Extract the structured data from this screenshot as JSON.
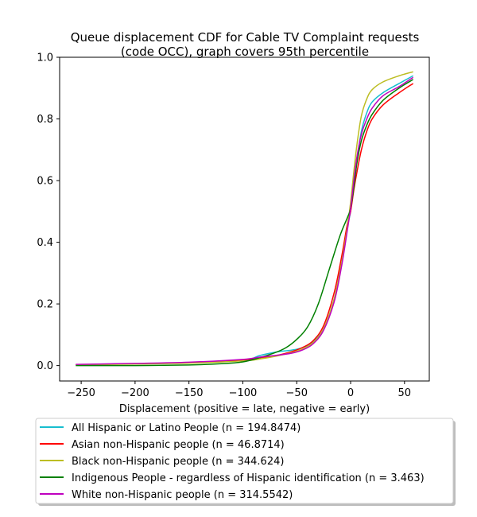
{
  "chart_data": {
    "type": "line",
    "title_line1": "Queue displacement CDF for Cable TV Complaint  requests",
    "title_line2": "(code OCC), graph covers 95th percentile",
    "xlabel": "Displacement (positive = late, negative = early)",
    "ylabel": "",
    "xlim": [
      -270,
      73
    ],
    "ylim": [
      -0.05,
      1.0
    ],
    "xticks": [
      -250,
      -200,
      -150,
      -100,
      -50,
      0,
      50
    ],
    "xtick_labels": [
      "−250",
      "−200",
      "−150",
      "−100",
      "−50",
      "0",
      "50"
    ],
    "yticks": [
      0.0,
      0.2,
      0.4,
      0.6,
      0.8,
      1.0
    ],
    "ytick_labels": [
      "0.0",
      "0.2",
      "0.4",
      "0.6",
      "0.8",
      "1.0"
    ],
    "grid": false,
    "legend_position": "below",
    "series": [
      {
        "name": "All Hispanic or Latino People (n = 194.8474)",
        "color": "#17becf",
        "points": [
          [
            -255,
            0.003
          ],
          [
            -200,
            0.006
          ],
          [
            -150,
            0.009
          ],
          [
            -100,
            0.017
          ],
          [
            -85,
            0.032
          ],
          [
            -75,
            0.04
          ],
          [
            -65,
            0.046
          ],
          [
            -55,
            0.05
          ],
          [
            -45,
            0.058
          ],
          [
            -35,
            0.077
          ],
          [
            -25,
            0.12
          ],
          [
            -15,
            0.22
          ],
          [
            -8,
            0.34
          ],
          [
            -3,
            0.45
          ],
          [
            0,
            0.5
          ],
          [
            3,
            0.59
          ],
          [
            6,
            0.67
          ],
          [
            10,
            0.76
          ],
          [
            15,
            0.82
          ],
          [
            20,
            0.855
          ],
          [
            30,
            0.885
          ],
          [
            45,
            0.915
          ],
          [
            58,
            0.94
          ]
        ]
      },
      {
        "name": "Asian non-Hispanic people (n = 46.8714)",
        "color": "#ff0000",
        "points": [
          [
            -255,
            0.003
          ],
          [
            -200,
            0.006
          ],
          [
            -150,
            0.01
          ],
          [
            -100,
            0.018
          ],
          [
            -85,
            0.025
          ],
          [
            -70,
            0.032
          ],
          [
            -55,
            0.045
          ],
          [
            -45,
            0.058
          ],
          [
            -35,
            0.08
          ],
          [
            -25,
            0.13
          ],
          [
            -15,
            0.24
          ],
          [
            -8,
            0.36
          ],
          [
            -3,
            0.46
          ],
          [
            0,
            0.5
          ],
          [
            3,
            0.57
          ],
          [
            6,
            0.63
          ],
          [
            10,
            0.7
          ],
          [
            15,
            0.76
          ],
          [
            20,
            0.8
          ],
          [
            30,
            0.845
          ],
          [
            45,
            0.885
          ],
          [
            58,
            0.915
          ]
        ]
      },
      {
        "name": "Black non-Hispanic people (n = 344.624)",
        "color": "#bcbd22",
        "points": [
          [
            -255,
            0.002
          ],
          [
            -200,
            0.005
          ],
          [
            -150,
            0.008
          ],
          [
            -100,
            0.015
          ],
          [
            -85,
            0.021
          ],
          [
            -70,
            0.03
          ],
          [
            -55,
            0.042
          ],
          [
            -45,
            0.053
          ],
          [
            -35,
            0.074
          ],
          [
            -25,
            0.12
          ],
          [
            -15,
            0.22
          ],
          [
            -8,
            0.34
          ],
          [
            -3,
            0.45
          ],
          [
            0,
            0.53
          ],
          [
            3,
            0.63
          ],
          [
            6,
            0.72
          ],
          [
            10,
            0.81
          ],
          [
            15,
            0.865
          ],
          [
            20,
            0.895
          ],
          [
            30,
            0.92
          ],
          [
            45,
            0.94
          ],
          [
            58,
            0.953
          ]
        ]
      },
      {
        "name": "Indigenous People - regardless of Hispanic identification (n = 3.463)",
        "color": "#008000",
        "points": [
          [
            -255,
            0.0
          ],
          [
            -200,
            0.0
          ],
          [
            -150,
            0.002
          ],
          [
            -120,
            0.006
          ],
          [
            -100,
            0.012
          ],
          [
            -85,
            0.025
          ],
          [
            -70,
            0.042
          ],
          [
            -60,
            0.058
          ],
          [
            -50,
            0.085
          ],
          [
            -40,
            0.125
          ],
          [
            -30,
            0.2
          ],
          [
            -20,
            0.31
          ],
          [
            -10,
            0.42
          ],
          [
            -3,
            0.48
          ],
          [
            0,
            0.51
          ],
          [
            3,
            0.58
          ],
          [
            6,
            0.66
          ],
          [
            10,
            0.73
          ],
          [
            15,
            0.78
          ],
          [
            20,
            0.815
          ],
          [
            30,
            0.86
          ],
          [
            45,
            0.9
          ],
          [
            58,
            0.928
          ]
        ]
      },
      {
        "name": "White non-Hispanic people (n = 314.5542)",
        "color": "#bf00bf",
        "points": [
          [
            -255,
            0.004
          ],
          [
            -200,
            0.007
          ],
          [
            -150,
            0.011
          ],
          [
            -100,
            0.02
          ],
          [
            -85,
            0.027
          ],
          [
            -70,
            0.033
          ],
          [
            -55,
            0.04
          ],
          [
            -45,
            0.05
          ],
          [
            -35,
            0.07
          ],
          [
            -25,
            0.115
          ],
          [
            -15,
            0.21
          ],
          [
            -8,
            0.33
          ],
          [
            -3,
            0.44
          ],
          [
            0,
            0.51
          ],
          [
            3,
            0.6
          ],
          [
            6,
            0.68
          ],
          [
            10,
            0.75
          ],
          [
            15,
            0.8
          ],
          [
            20,
            0.835
          ],
          [
            30,
            0.875
          ],
          [
            45,
            0.905
          ],
          [
            58,
            0.935
          ]
        ]
      }
    ]
  }
}
